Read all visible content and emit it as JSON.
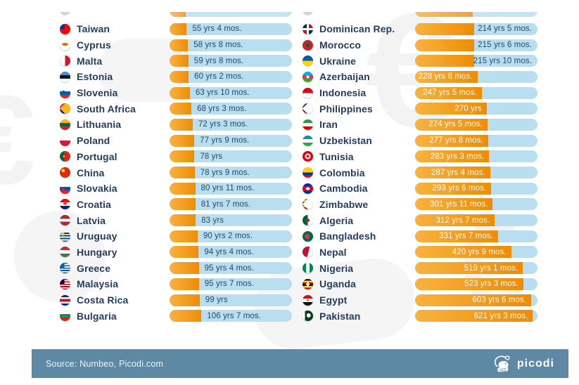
{
  "colors": {
    "bar_track": "#b9def0",
    "bar_fill_start": "#f8b240",
    "bar_fill_end": "#ee8c06",
    "value_text_dark": "#254769",
    "value_text_light": "#ffffff",
    "country_text": "#233d60",
    "footer_bg": "#5e89a4",
    "footer_text": "#eef3f7"
  },
  "footer": {
    "source_text": "Source: Numbeo, Picodi.com",
    "brand_name": "picodi"
  },
  "chart_data": {
    "type": "bar",
    "orientation": "horizontal",
    "description": "Two-column country list: time (years and months) shown as orange fill on light-blue pill bars",
    "value_unit": "years and months",
    "legend": "none",
    "grid": false,
    "cropped_top_row": {
      "left_fill_pct": 13,
      "right_fill_pct": 47
    },
    "columns": [
      {
        "name": "left",
        "rows": [
          {
            "country": "Taiwan",
            "value_label": "55 yrs 4 mos.",
            "years": 55,
            "months": 4,
            "fill_pct": 14.0,
            "value_style": "after",
            "flag_css": "conic-gradient(from 270deg at 45% 45%,#003595 0 90deg,transparent 90deg),#fe0000"
          },
          {
            "country": "Cyprus",
            "value_label": "58 yrs 8 mos.",
            "years": 58,
            "months": 8,
            "fill_pct": 15.1,
            "value_style": "after",
            "flag_css": "radial-gradient(ellipse 4.5px 2px at 50% 40%,#d47600 96%,transparent),#ffffff"
          },
          {
            "country": "Malta",
            "value_label": "59 yrs 8 mos.",
            "years": 59,
            "months": 8,
            "fill_pct": 15.4,
            "value_style": "after",
            "flag_css": "linear-gradient(90deg,#ffffff 50%,#cf142b 50%)"
          },
          {
            "country": "Estonia",
            "value_label": "60 yrs 2 mos.",
            "years": 60,
            "months": 2,
            "fill_pct": 15.6,
            "value_style": "after",
            "flag_css": "linear-gradient(180deg,#4891d9 33%,#151515 33% 66%,#ffffff 66%)"
          },
          {
            "country": "Slovenia",
            "value_label": "63 yrs 10 mos.",
            "years": 63,
            "months": 10,
            "fill_pct": 16.6,
            "value_style": "after",
            "flag_css": "radial-gradient(circle 2px at 34% 38%,#005da4 95%,transparent),linear-gradient(180deg,#ffffff 33%,#005da4 33% 66%,#ed1c24 66%)"
          },
          {
            "country": "South Africa",
            "value_label": "68 yrs 3 mos.",
            "years": 68,
            "months": 3,
            "fill_pct": 17.9,
            "value_style": "after",
            "flag_css": "conic-gradient(from 45deg at 0% 50%,#ffb81c 0 90deg,transparent 90deg),linear-gradient(180deg,#e03c31 42%,#007749 42% 58%,#001489 58%)"
          },
          {
            "country": "Lithuania",
            "value_label": "72 yrs 3 mos.",
            "years": 72,
            "months": 3,
            "fill_pct": 18.9,
            "value_style": "after",
            "flag_css": "linear-gradient(180deg,#fdb913 33%,#006a44 33% 66%,#c1272d 66%)"
          },
          {
            "country": "Poland",
            "value_label": "77 yrs 9 mos.",
            "years": 77,
            "months": 9,
            "fill_pct": 20.2,
            "value_style": "after",
            "flag_css": "linear-gradient(180deg,#ffffff 48%,#dc143c 48%)"
          },
          {
            "country": "Portugal",
            "value_label": "78 yrs",
            "years": 78,
            "months": 0,
            "fill_pct": 20.3,
            "value_style": "after",
            "flag_css": "radial-gradient(circle 2.5px at 40% 50%,#ffe600 55%,#cc0000 56% 95%,transparent),linear-gradient(90deg,#046a38 40%,#da291c 40%)"
          },
          {
            "country": "China",
            "value_label": "78 yrs 9 mos.",
            "years": 78,
            "months": 9,
            "fill_pct": 20.5,
            "value_style": "after",
            "flag_css": "radial-gradient(circle 2.5px at 32% 32%,#ffde00 96%,transparent),#de2910"
          },
          {
            "country": "Slovakia",
            "value_label": "80 yrs 11 mos.",
            "years": 80,
            "months": 11,
            "fill_pct": 21.0,
            "value_style": "after",
            "flag_css": "radial-gradient(circle 2px at 33% 55%,#ee1c25 95%,transparent),linear-gradient(180deg,#ffffff 33%,#0b4ea2 33% 66%,#ee1c25 66%)"
          },
          {
            "country": "Croatia",
            "value_label": "81 yrs 7 mos.",
            "years": 81,
            "months": 7,
            "fill_pct": 21.1,
            "value_style": "after",
            "flag_css": "radial-gradient(circle 2.5px at 50% 42%,#e03c31 95%,transparent),linear-gradient(180deg,#ff0000 33%,#ffffff 33% 66%,#171796 66%)"
          },
          {
            "country": "Latvia",
            "value_label": "83 yrs",
            "years": 83,
            "months": 0,
            "fill_pct": 21.4,
            "value_style": "after",
            "flag_css": "linear-gradient(180deg,#9e3039 38%,#ffffff 38% 62%,#9e3039 62%)"
          },
          {
            "country": "Uruguay",
            "value_label": "90 yrs 2 mos.",
            "years": 90,
            "months": 2,
            "fill_pct": 22.9,
            "value_style": "after",
            "flag_css": "radial-gradient(circle 2.5px at 28% 28%,#fcd116 96%,transparent),repeating-linear-gradient(180deg,#ffffff 0 1.9px,#0038a8 1.9px 3.8px)"
          },
          {
            "country": "Hungary",
            "value_label": "94 yrs 4 mos.",
            "years": 94,
            "months": 4,
            "fill_pct": 23.8,
            "value_style": "after",
            "flag_css": "linear-gradient(180deg,#ce2939 33%,#ffffff 33% 66%,#477050 66%)"
          },
          {
            "country": "Greece",
            "value_label": "95 yrs 4 mos.",
            "years": 95,
            "months": 4,
            "fill_pct": 23.9,
            "value_style": "after",
            "flag_css": "conic-gradient(from 270deg at 45% 45%,#0d5eaf 0 90deg,transparent 90deg),repeating-linear-gradient(180deg,#0d5eaf 0 1.7px,#ffffff 1.7px 3.4px)"
          },
          {
            "country": "Malaysia",
            "value_label": "95 yrs 7 mos.",
            "years": 95,
            "months": 7,
            "fill_pct": 24.0,
            "value_style": "after",
            "flag_css": "conic-gradient(from 270deg at 45% 45%,#010066 0 90deg,transparent 90deg),repeating-linear-gradient(180deg,#cc0001 0 1.7px,#ffffff 1.7px 3.4px)"
          },
          {
            "country": "Costa Rica",
            "value_label": "99 yrs",
            "years": 99,
            "months": 0,
            "fill_pct": 24.6,
            "value_style": "after",
            "flag_css": "linear-gradient(180deg,#002b7f 20%,#ffffff 20% 38%,#ce1126 38% 62%,#ffffff 62% 80%,#002b7f 80%)"
          },
          {
            "country": "Bulgaria",
            "value_label": "106 yrs 7 mos.",
            "years": 106,
            "months": 7,
            "fill_pct": 26.0,
            "value_style": "after",
            "flag_css": "linear-gradient(180deg,#ffffff 33%,#00966e 33% 66%,#d62612 66%)"
          }
        ]
      },
      {
        "name": "right",
        "rows": [
          {
            "country": "Dominican Rep.",
            "value_label": "214 yrs 5 mos.",
            "years": 214,
            "months": 5,
            "fill_pct": 48.0,
            "value_style": "end",
            "flag_css": "linear-gradient(180deg,transparent 40%,#ffffff 40% 60%,transparent 60%),linear-gradient(90deg,transparent 40%,#ffffff 40% 60%,transparent 60%),conic-gradient(#ce1126 0 90deg,#002d62 90deg 180deg,#ce1126 180deg 270deg,#002d62 270deg)"
          },
          {
            "country": "Morocco",
            "value_label": "215 yrs 6 mos.",
            "years": 215,
            "months": 6,
            "fill_pct": 48.2,
            "value_style": "end",
            "flag_css": "radial-gradient(circle 2.5px at 50% 50%,#006233 95%,transparent),#c1272d"
          },
          {
            "country": "Ukraine",
            "value_label": "215 yrs 10 mos.",
            "years": 215,
            "months": 10,
            "fill_pct": 48.3,
            "value_style": "end",
            "flag_css": "linear-gradient(180deg,#005bbb 50%,#ffd500 50%)"
          },
          {
            "country": "Azerbaijan",
            "value_label": "228 yrs 8 mos.",
            "years": 228,
            "months": 8,
            "fill_pct": 50.9,
            "value_style": "in",
            "flag_css": "radial-gradient(circle 2px at 50% 50%,#ffffff 95%,transparent),linear-gradient(180deg,#00b5e2 33%,#ef3340 33% 66%,#509e2f 66%)"
          },
          {
            "country": "Indonesia",
            "value_label": "247 yrs 5 mos.",
            "years": 247,
            "months": 5,
            "fill_pct": 54.5,
            "value_style": "in",
            "flag_css": "linear-gradient(180deg,#e70011 50%,#ffffff 50%)"
          },
          {
            "country": "Philippines",
            "value_label": "270 yrs",
            "years": 270,
            "months": 0,
            "fill_pct": 58.4,
            "value_style": "in",
            "flag_css": "conic-gradient(from 45deg at 0% 50%,#ffffff 0 90deg,transparent 90deg),linear-gradient(180deg,#0038a8 50%,#ce1126 50%)"
          },
          {
            "country": "Iran",
            "value_label": "274 yrs 5 mos.",
            "years": 274,
            "months": 5,
            "fill_pct": 59.2,
            "value_style": "in",
            "flag_css": "linear-gradient(180deg,#239f40 33%,#ffffff 33% 66%,#da0000 66%)"
          },
          {
            "country": "Uzbekistan",
            "value_label": "277 yrs 8 mos.",
            "years": 277,
            "months": 8,
            "fill_pct": 59.7,
            "value_style": "in",
            "flag_css": "linear-gradient(180deg,#0099b5 33%,#ffffff 33% 66%,#1eb53a 66%)"
          },
          {
            "country": "Tunisia",
            "value_label": "283 yrs 3 mos.",
            "years": 283,
            "months": 3,
            "fill_pct": 60.6,
            "value_style": "in",
            "flag_css": "radial-gradient(circle 2px at 50% 50%,#e70013 96%,transparent),radial-gradient(circle 4px at 50% 50%,#ffffff 96%,transparent),#e70013"
          },
          {
            "country": "Colombia",
            "value_label": "287 yrs 4 mos.",
            "years": 287,
            "months": 4,
            "fill_pct": 61.3,
            "value_style": "in",
            "flag_css": "linear-gradient(180deg,#fcd116 50%,#003893 50% 75%,#ce1126 75%)"
          },
          {
            "country": "Cambodia",
            "value_label": "293 yrs 6 mos.",
            "years": 293,
            "months": 6,
            "fill_pct": 62.2,
            "value_style": "in",
            "flag_css": "radial-gradient(ellipse 3px 2px at 50% 50%,#ffffff 95%,transparent),linear-gradient(180deg,#032ea1 28%,#e00025 28% 72%,#032ea1 72%)"
          },
          {
            "country": "Zimbabwe",
            "value_label": "301 yrs 11 mos.",
            "years": 301,
            "months": 11,
            "fill_pct": 63.5,
            "value_style": "in",
            "flag_css": "conic-gradient(from 45deg at 0% 50%,#ffffff 0 90deg,transparent 90deg),repeating-linear-gradient(180deg,#319208 0 2px,#ffd200 2px 4px,#d90000 4px 6px,#111111 6px 8px)"
          },
          {
            "country": "Algeria",
            "value_label": "312 yrs 7 mos.",
            "years": 312,
            "months": 7,
            "fill_pct": 65.1,
            "value_style": "in",
            "flag_css": "radial-gradient(circle 2.5px at 50% 50%,#d21034 95%,transparent),linear-gradient(90deg,#006233 50%,#ffffff 50%)"
          },
          {
            "country": "Bangladesh",
            "value_label": "331 yrs 7 mos.",
            "years": 331,
            "months": 7,
            "fill_pct": 67.8,
            "value_style": "in",
            "flag_css": "radial-gradient(circle 3.5px at 45% 50%,#f42a41 96%,transparent),#006a4e"
          },
          {
            "country": "Nepal",
            "value_label": "420 yrs 9 mos.",
            "years": 420,
            "months": 9,
            "fill_pct": 78.5,
            "value_style": "in",
            "flag_css": "linear-gradient(105deg,#c8102e 55%,#ffffff 55%)"
          },
          {
            "country": "Nigeria",
            "value_label": "519 yrs 1 mos.",
            "years": 519,
            "months": 1,
            "fill_pct": 88.1,
            "value_style": "in",
            "flag_css": "linear-gradient(90deg,#008751 33%,#ffffff 33% 66%,#008751 66%)"
          },
          {
            "country": "Uganda",
            "value_label": "523 yrs 3 mos.",
            "years": 523,
            "months": 3,
            "fill_pct": 88.4,
            "value_style": "in",
            "flag_css": "radial-gradient(circle 2.5px at 50% 50%,#ffffff 95%,transparent),repeating-linear-gradient(180deg,#111111 0 2.5px,#fcdc04 2.5px 5px,#d90000 5px 7.5px)"
          },
          {
            "country": "Egypt",
            "value_label": "603 yrs 6 mos.",
            "years": 603,
            "months": 6,
            "fill_pct": 94.9,
            "value_style": "in",
            "flag_css": "radial-gradient(circle 1.5px at 50% 50%,#c09300 95%,transparent),linear-gradient(180deg,#ce1126 33%,#ffffff 33% 66%,#111111 66%)"
          },
          {
            "country": "Pakistan",
            "value_label": "621 yrs 3 mos.",
            "years": 621,
            "months": 3,
            "fill_pct": 96.2,
            "value_style": "in",
            "flag_css": "radial-gradient(circle 3px at 58% 46%,#ffffff 96%,transparent),linear-gradient(90deg,#ffffff 22%,#01411c 22%)"
          }
        ]
      }
    ]
  }
}
